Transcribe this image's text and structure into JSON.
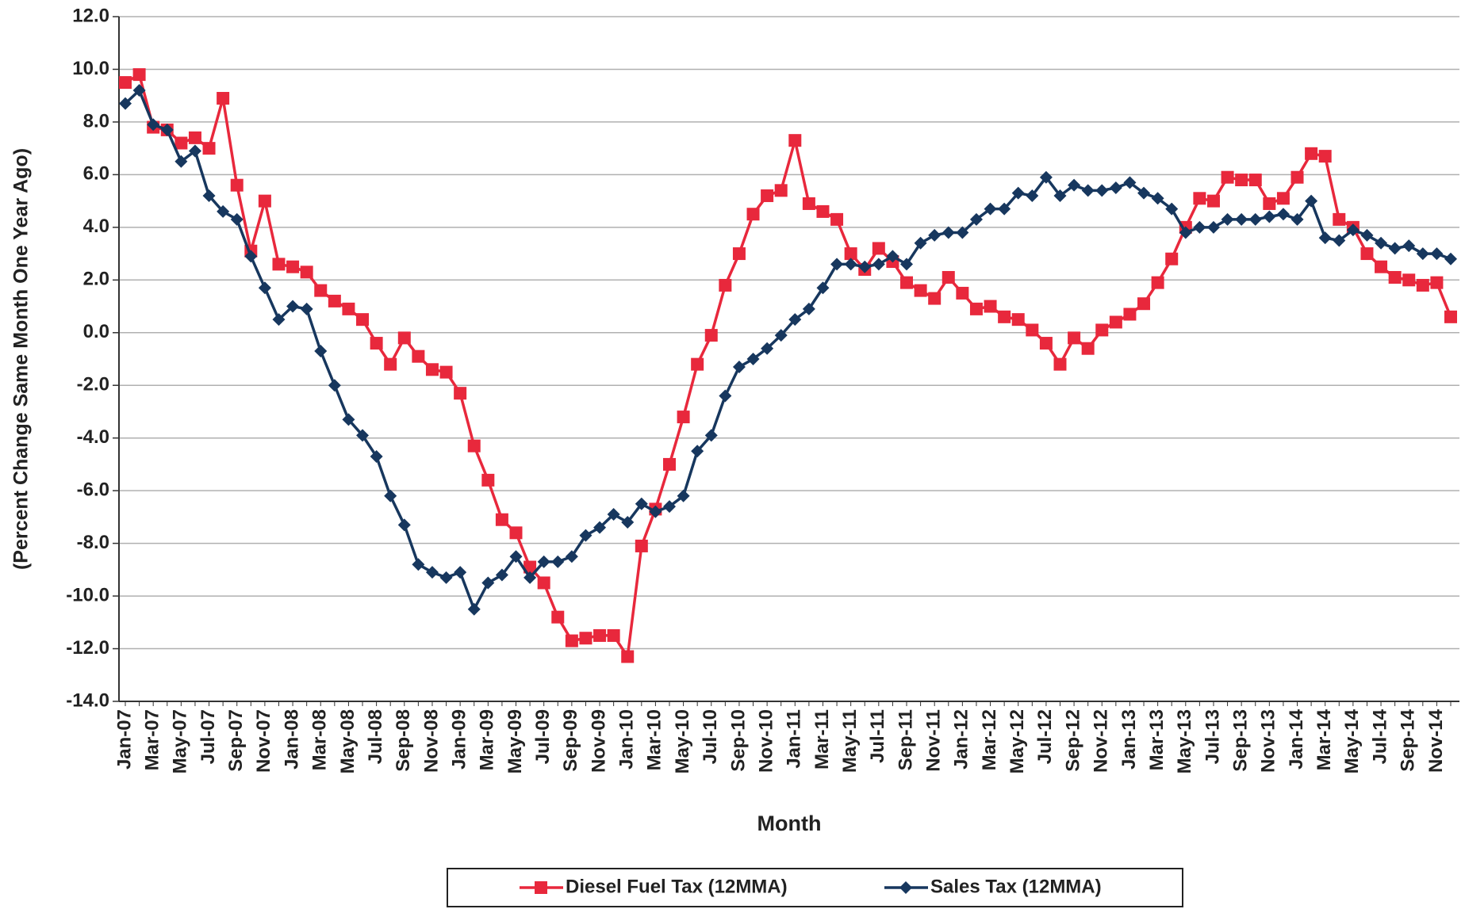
{
  "chart_data": {
    "type": "line",
    "x_label": "Month",
    "y_label": "(Percent Change Same Month One Year Ago)",
    "categories": [
      "Jan-07",
      null,
      "Mar-07",
      null,
      "May-07",
      null,
      "Jul-07",
      null,
      "Sep-07",
      null,
      "Nov-07",
      null,
      "Jan-08",
      null,
      "Mar-08",
      null,
      "May-08",
      null,
      "Jul-08",
      null,
      "Sep-08",
      null,
      "Nov-08",
      null,
      "Jan-09",
      null,
      "Mar-09",
      null,
      "May-09",
      null,
      "Jul-09",
      null,
      "Sep-09",
      null,
      "Nov-09",
      null,
      "Jan-10",
      null,
      "Mar-10",
      null,
      "May-10",
      null,
      "Jul-10",
      null,
      "Sep-10",
      null,
      "Nov-10",
      null,
      "Jan-11",
      null,
      "Mar-11",
      null,
      "May-11",
      null,
      "Jul-11",
      null,
      "Sep-11",
      null,
      "Nov-11",
      null,
      "Jan-12",
      null,
      "Mar-12",
      null,
      "May-12",
      null,
      "Jul-12",
      null,
      "Sep-12",
      null,
      "Nov-12",
      null,
      "Jan-13",
      null,
      "Mar-13",
      null,
      "May-13",
      null,
      "Jul-13",
      null,
      "Sep-13",
      null,
      "Nov-13",
      null,
      "Jan-14",
      null,
      "Mar-14",
      null,
      "May-14",
      null,
      "Jul-14",
      null,
      "Sep-14",
      null,
      "Nov-14",
      null
    ],
    "series": [
      {
        "name": "Diesel Fuel Tax (12MMA)",
        "color": "#e8283c",
        "marker": "square",
        "values": [
          9.5,
          9.8,
          7.8,
          7.7,
          7.2,
          7.4,
          7.0,
          8.9,
          5.6,
          3.1,
          5.0,
          2.6,
          2.5,
          2.3,
          1.6,
          1.2,
          0.9,
          0.5,
          -0.4,
          -1.2,
          -0.2,
          -0.9,
          -1.4,
          -1.5,
          -2.3,
          -4.3,
          -5.6,
          -7.1,
          -7.6,
          -8.9,
          -9.5,
          -10.8,
          -11.7,
          -11.6,
          -11.5,
          -11.5,
          -12.3,
          -8.1,
          -6.7,
          -5.0,
          -3.2,
          -1.2,
          -0.1,
          1.8,
          3.0,
          4.5,
          5.2,
          5.4,
          7.3,
          4.9,
          4.6,
          4.3,
          3.0,
          2.4,
          3.2,
          2.7,
          1.9,
          1.6,
          1.3,
          2.1,
          1.5,
          0.9,
          1.0,
          0.6,
          0.5,
          0.1,
          -0.4,
          -1.2,
          -0.2,
          -0.6,
          0.1,
          0.4,
          0.7,
          1.1,
          1.9,
          2.8,
          4.0,
          5.1,
          5.0,
          5.9,
          5.8,
          5.8,
          4.9,
          5.1,
          5.9,
          6.8,
          6.7,
          4.3,
          4.0,
          3.0,
          2.5,
          2.1,
          2.0,
          1.8,
          1.9,
          0.6
        ]
      },
      {
        "name": "Sales Tax (12MMA)",
        "color": "#17375e",
        "marker": "diamond",
        "values": [
          8.7,
          9.2,
          7.9,
          7.7,
          6.5,
          6.9,
          5.2,
          4.6,
          4.3,
          2.9,
          1.7,
          0.5,
          1.0,
          0.9,
          -0.7,
          -2.0,
          -3.3,
          -3.9,
          -4.7,
          -6.2,
          -7.3,
          -8.8,
          -9.1,
          -9.3,
          -9.1,
          -10.5,
          -9.5,
          -9.2,
          -8.5,
          -9.3,
          -8.7,
          -8.7,
          -8.5,
          -7.7,
          -7.4,
          -6.9,
          -7.2,
          -6.5,
          -6.8,
          -6.6,
          -6.2,
          -4.5,
          -3.9,
          -2.4,
          -1.3,
          -1.0,
          -0.6,
          -0.1,
          0.5,
          0.9,
          1.7,
          2.6,
          2.6,
          2.5,
          2.6,
          2.9,
          2.6,
          3.4,
          3.7,
          3.8,
          3.8,
          4.3,
          4.7,
          4.7,
          5.3,
          5.2,
          5.9,
          5.2,
          5.6,
          5.4,
          5.4,
          5.5,
          5.7,
          5.3,
          5.1,
          4.7,
          3.8,
          4.0,
          4.0,
          4.3,
          4.3,
          4.3,
          4.4,
          4.5,
          4.3,
          5.0,
          3.6,
          3.5,
          3.9,
          3.7,
          3.4,
          3.2,
          3.3,
          3.0,
          3.0,
          2.8
        ]
      }
    ],
    "ylim": [
      -14,
      12
    ],
    "yticks": [
      {
        "value": -14,
        "label": "-14.0"
      },
      {
        "value": -12,
        "label": "-12.0"
      },
      {
        "value": -10,
        "label": "-10.0"
      },
      {
        "value": -8,
        "label": "-8.0"
      },
      {
        "value": -6,
        "label": "-6.0"
      },
      {
        "value": -4,
        "label": "-4.0"
      },
      {
        "value": -2,
        "label": "-2.0"
      },
      {
        "value": 0,
        "label": "0.0"
      },
      {
        "value": 2,
        "label": "2.0"
      },
      {
        "value": 4,
        "label": "4.0"
      },
      {
        "value": 6,
        "label": "6.0"
      },
      {
        "value": 8,
        "label": "8.0"
      },
      {
        "value": 10,
        "label": "10.0"
      },
      {
        "value": 12,
        "label": "12.0"
      }
    ],
    "grid": true,
    "legend": "bottom"
  }
}
